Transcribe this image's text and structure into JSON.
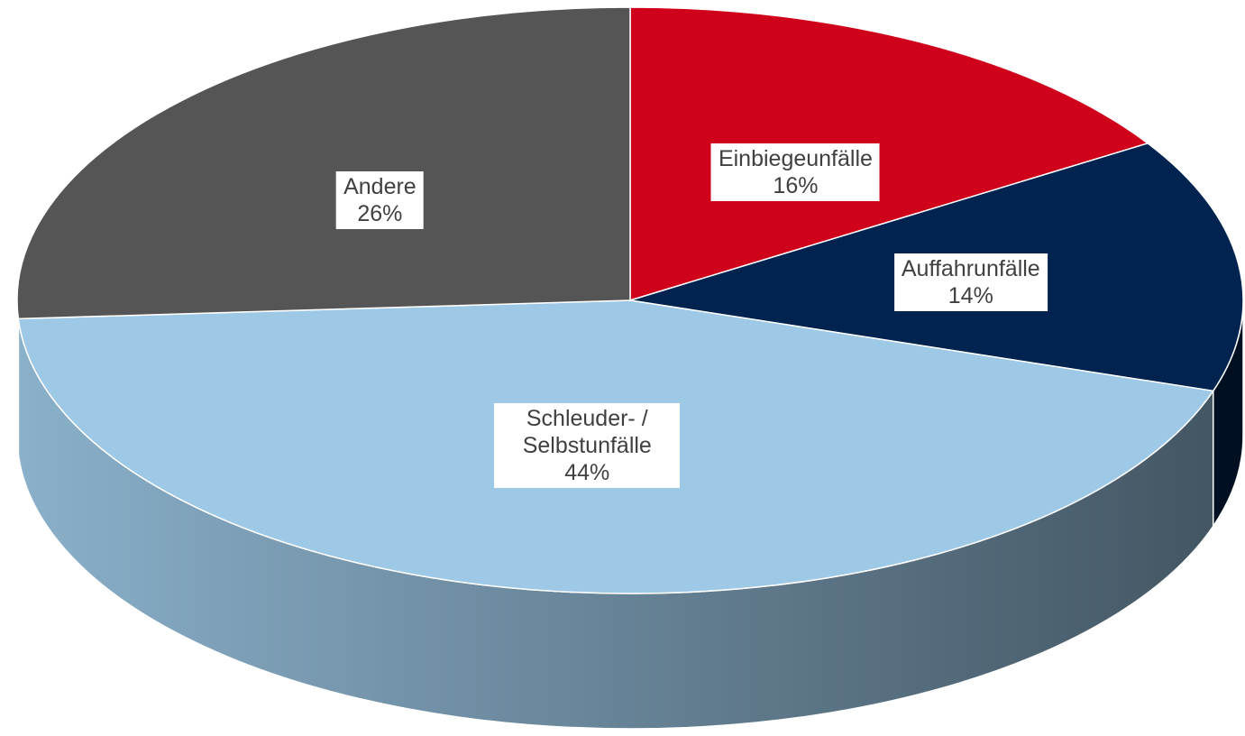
{
  "chart_data": {
    "type": "pie",
    "categories": [
      "Einbiegeunfälle",
      "Auffahrunfälle",
      "Schleuder- / Selbstunfälle",
      "Andere"
    ],
    "values": [
      16,
      14,
      44,
      26
    ],
    "value_labels": [
      "16%",
      "14%",
      "44%",
      "26%"
    ],
    "colors": [
      "#d0021b",
      "#00234f",
      "#9dc8e6",
      "#555555"
    ]
  }
}
